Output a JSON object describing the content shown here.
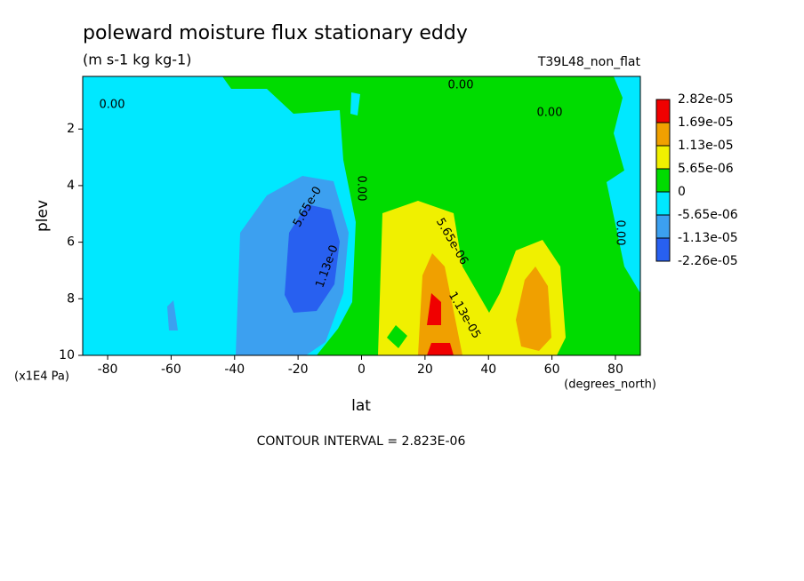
{
  "chart_data": {
    "type": "contour",
    "title": "poleward moisture flux stationary eddy",
    "subtitle": "(m s-1 kg kg-1)",
    "run_label": "T39L48_non_flat",
    "x_label": "lat",
    "x_unit": "(degrees_north)",
    "y_label": "plev",
    "y_unit": "(x1E4 Pa)",
    "footer": "CONTOUR INTERVAL = 2.823E-06",
    "xlim": [
      -87.86,
      87.86
    ],
    "xticks": [
      -80,
      -60,
      -40,
      -20,
      0,
      20,
      40,
      60,
      80
    ],
    "ylim": [
      10,
      0.14
    ],
    "yticks": [
      2,
      4,
      6,
      8,
      10
    ],
    "levels": [
      {
        "value": 2.82e-05,
        "label": "2.82e-05"
      },
      {
        "value": 1.69e-05,
        "label": "1.69e-05"
      },
      {
        "value": 1.13e-05,
        "label": "1.13e-05"
      },
      {
        "value": 5.65e-06,
        "label": "5.65e-06"
      },
      0,
      {
        "value": -5.65e-06,
        "label": "-5.65e-06"
      },
      {
        "value": -1.13e-05,
        "label": "-1.13e-05"
      },
      {
        "value": -2.26e-05,
        "label": "-2.26e-05"
      }
    ],
    "colors": [
      "#f00000",
      "#f0a000",
      "#f0f000",
      "#00dc00",
      "#00e8ff",
      "#3ca0f0",
      "#2860f0"
    ],
    "contour_labels": [
      "0.00",
      "0.00",
      "0.00",
      "0.00",
      "0.00",
      "5.65e-0",
      "1.13e-0",
      "5.65e-06",
      "1.13e-05"
    ]
  }
}
